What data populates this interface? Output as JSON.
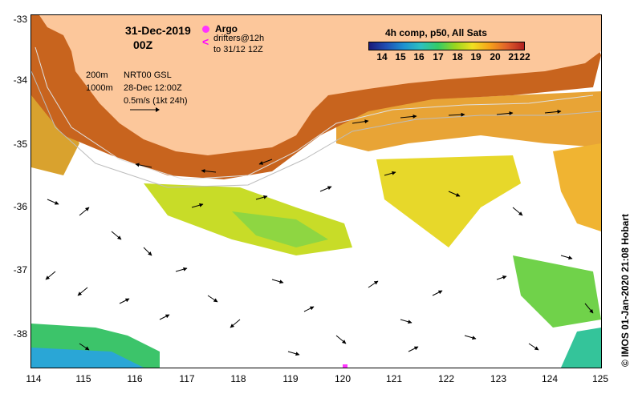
{
  "header": {
    "date": "31-Dec-2019",
    "time": "00Z",
    "argo_label": "Argo",
    "drifters_label": "drifters@12h",
    "drifters_to": "to 31/12 12Z",
    "depth_200": "200m",
    "depth_1000": "1000m",
    "altimetry_product": "NRT00 GSL",
    "altimetry_time": "28-Dec 12:00Z",
    "velocity_scale": "0.5m/s (1kt 24h)"
  },
  "legend": {
    "title": "4h comp, p50, All Sats",
    "ticks": [
      "14",
      "15",
      "16",
      "17",
      "18",
      "19",
      "20",
      "21",
      "22"
    ],
    "colors": [
      "#1a1a7a",
      "#1f4fb4",
      "#1e90d0",
      "#2cc0c0",
      "#33cc66",
      "#9ad61e",
      "#f0e020",
      "#f7a21a",
      "#e0602a",
      "#b02020"
    ]
  },
  "axes": {
    "x_labels": [
      "114",
      "115",
      "116",
      "117",
      "118",
      "119",
      "120",
      "121",
      "122",
      "123",
      "124",
      "125"
    ],
    "y_labels": [
      "-33",
      "-34",
      "-35",
      "-36",
      "-37",
      "-38"
    ],
    "lon_range": [
      114,
      125
    ],
    "lat_range": [
      -33,
      -38.5
    ]
  },
  "map": {
    "land_color": "#fcc79b",
    "no_data_color": "#ffffff",
    "warm_shelf_color": "#c8641e",
    "contour_color": "#d8d8d8"
  },
  "credit": "© IMOS 01-Jan-2020 21:08 Hobart"
}
